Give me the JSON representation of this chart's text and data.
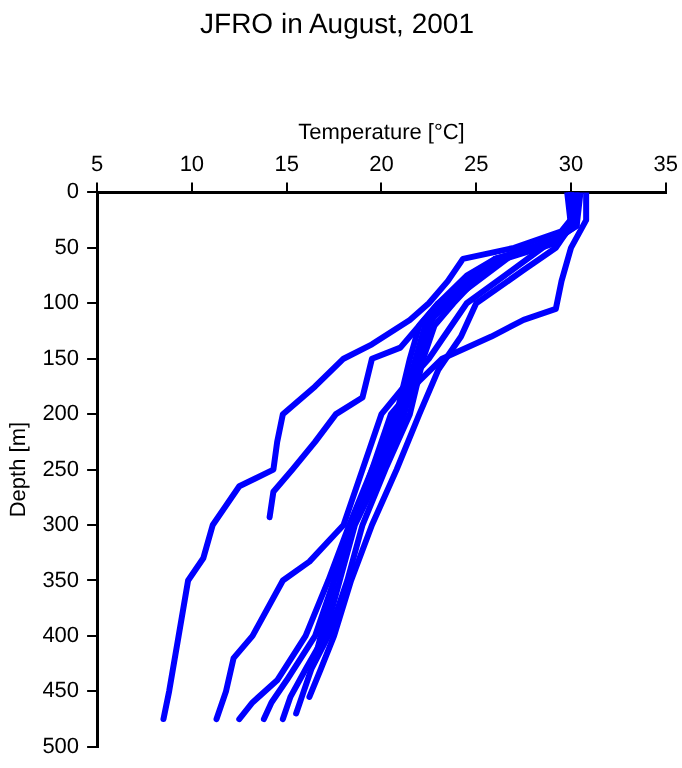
{
  "chart_data": {
    "type": "line",
    "title": "JFRO in August, 2001",
    "xlabel": "Temperature [°C]",
    "ylabel": "Depth [m]",
    "xlim": [
      5,
      35
    ],
    "xticks": [
      5,
      10,
      15,
      20,
      25,
      30,
      35
    ],
    "ylim": [
      500,
      0
    ],
    "yticks": [
      0,
      50,
      100,
      150,
      200,
      250,
      300,
      350,
      400,
      450,
      500
    ],
    "grid": false,
    "legend": false,
    "marker": "none",
    "line_style": "solid",
    "series": [
      {
        "color": "#0000ff",
        "x": [
          30,
          30.2,
          29.5,
          27,
          24.3,
          23.5,
          22.5,
          21.5,
          19.5,
          18,
          16.5,
          14.8,
          14.5,
          14.3,
          12.5,
          11.1,
          10.6,
          9.8,
          9.3,
          8.8,
          8.5
        ],
        "values": [
          0,
          20,
          35,
          50,
          60,
          80,
          100,
          115,
          137,
          150,
          175,
          200,
          225,
          250,
          265,
          300,
          330,
          350,
          400,
          450,
          475
        ]
      },
      {
        "color": "#0000ff",
        "x": [
          30.5,
          30.3,
          29,
          26,
          24.5,
          23,
          22,
          21,
          19.5,
          19,
          17.6,
          16.5,
          15.3,
          14.3,
          14.1
        ],
        "values": [
          0,
          30,
          45,
          60,
          75,
          100,
          120,
          140,
          150,
          185,
          200,
          225,
          250,
          270,
          293
        ]
      },
      {
        "color": "#0000ff",
        "x": [
          30.8,
          30.8,
          30,
          29.5,
          29.2,
          27.5,
          25.8,
          23.2,
          22,
          20.5,
          19.5,
          18.5,
          17.5,
          16.8,
          16.5
        ],
        "values": [
          0,
          25,
          50,
          80,
          105,
          115,
          130,
          150,
          170,
          200,
          250,
          300,
          350,
          400,
          420
        ]
      },
      {
        "color": "#0000ff",
        "x": [
          30,
          30.3,
          28.5,
          26.5,
          24.5,
          23.5,
          22.5,
          21.2,
          20,
          19,
          18,
          16.2,
          14.8,
          13.2,
          12.2,
          11.8,
          11.3
        ],
        "values": [
          0,
          30,
          50,
          75,
          100,
          125,
          150,
          175,
          200,
          250,
          300,
          333,
          350,
          400,
          420,
          450,
          475
        ]
      },
      {
        "color": "#0000ff",
        "x": [
          29.8,
          30,
          29,
          26,
          23,
          22,
          21.5,
          20.8,
          19.5,
          18.3,
          17.2,
          16,
          14.5,
          13.2,
          12.5
        ],
        "values": [
          0,
          30,
          45,
          60,
          100,
          120,
          150,
          200,
          250,
          300,
          350,
          400,
          440,
          460,
          475
        ]
      },
      {
        "color": "#0000ff",
        "x": [
          30.2,
          30,
          29.5,
          27,
          23.5,
          22.3,
          21.8,
          21,
          19.8,
          18.5,
          17.5,
          16.5,
          15,
          14.2,
          13.8
        ],
        "values": [
          0,
          30,
          40,
          55,
          100,
          120,
          150,
          200,
          250,
          300,
          350,
          400,
          440,
          460,
          475
        ]
      },
      {
        "color": "#0000ff",
        "x": [
          30,
          30.1,
          29.3,
          26.5,
          23.2,
          22.5,
          22,
          21.2,
          20,
          18.6,
          17.8,
          17,
          16,
          15.2,
          14.8
        ],
        "values": [
          0,
          30,
          45,
          60,
          100,
          120,
          150,
          200,
          250,
          300,
          350,
          400,
          430,
          455,
          475
        ]
      },
      {
        "color": "#0000ff",
        "x": [
          29.9,
          30.2,
          29,
          26,
          23.8,
          22.8,
          22.2,
          21.5,
          20.2,
          19,
          18.2,
          17.2,
          16.3,
          15.8,
          15.5
        ],
        "values": [
          0,
          30,
          45,
          60,
          100,
          120,
          150,
          200,
          250,
          300,
          350,
          400,
          430,
          455,
          470
        ]
      },
      {
        "color": "#0000ff",
        "x": [
          30.3,
          30,
          29.2,
          27.5,
          25,
          24.2,
          23,
          22,
          20.8,
          19.5,
          18.4,
          17.5,
          16.8,
          16.2
        ],
        "values": [
          0,
          30,
          50,
          70,
          100,
          130,
          160,
          200,
          250,
          300,
          350,
          400,
          430,
          455
        ]
      }
    ]
  }
}
